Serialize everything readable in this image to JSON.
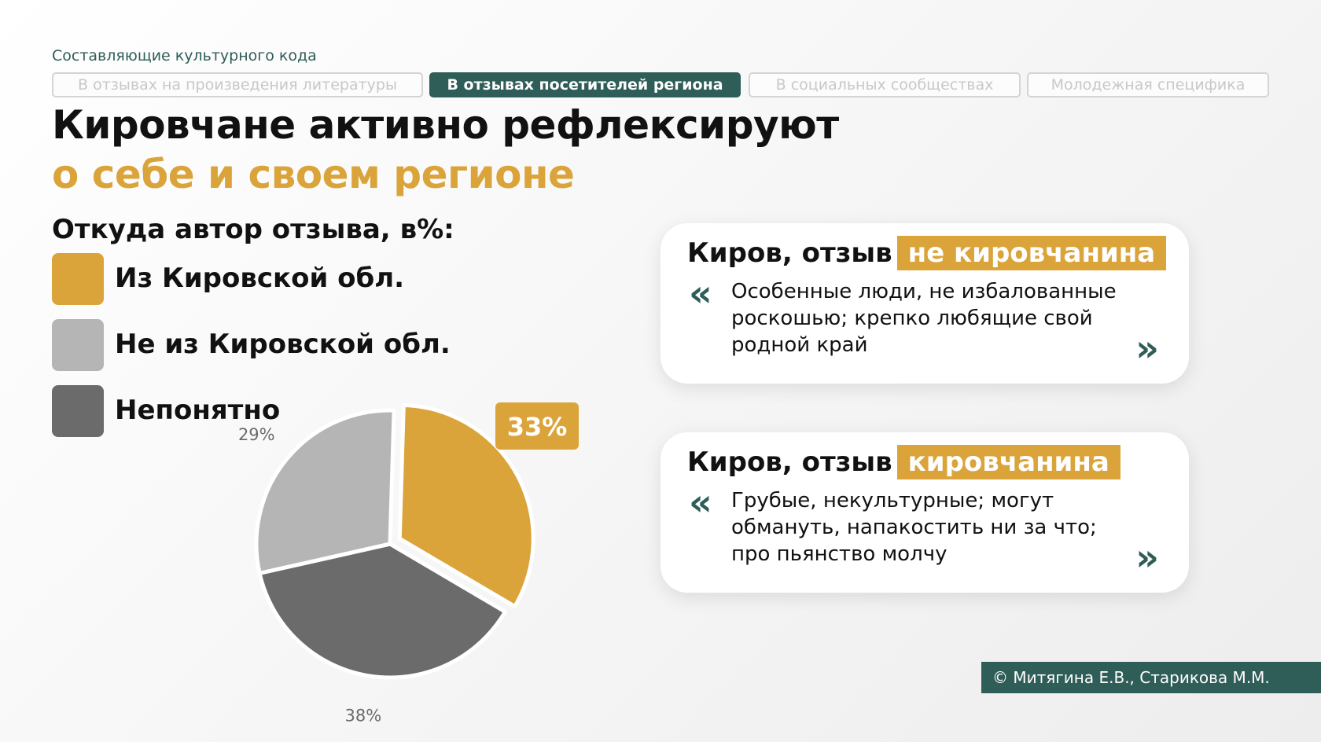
{
  "header": {
    "subtitle": "Составляющие культурного кода",
    "tabs": [
      {
        "label": "В отзывах на произведения литературы",
        "active": false
      },
      {
        "label": "В отзывах посетителей региона",
        "active": true
      },
      {
        "label": "В социальных сообществах",
        "active": false
      },
      {
        "label": "Молодежная специфика",
        "active": false
      }
    ],
    "title_line1": "Кировчане активно рефлексируют",
    "title_line2": "о себе и своем регионе"
  },
  "colors": {
    "accent": "#dba43a",
    "brand": "#2f5d58",
    "gray_light": "#b5b5b5",
    "gray_dark": "#6b6b6b"
  },
  "legend": {
    "title": "Откуда автор отзыва, в%:",
    "items": [
      {
        "label": "Из Кировской обл.",
        "color": "#dba43a"
      },
      {
        "label": "Не из Кировской обл.",
        "color": "#b5b5b5"
      },
      {
        "label": "Непонятно",
        "color": "#6b6b6b"
      }
    ]
  },
  "chart_data": {
    "type": "pie",
    "title": "Откуда автор отзыва, в%:",
    "categories": [
      "Из Кировской обл.",
      "Непонятно",
      "Не из Кировской обл."
    ],
    "values": [
      33,
      38,
      29
    ],
    "labels": [
      "33%",
      "38%",
      "29%"
    ],
    "colors": [
      "#dba43a",
      "#6b6b6b",
      "#b5b5b5"
    ],
    "exploded": "Из Кировской обл."
  },
  "cards": [
    {
      "head": "Киров, отзыв",
      "highlight": "не кировчанина",
      "text": "Особенные люди, не избалованные роскошью; крепко любящие свой родной край",
      "quote_open": "«",
      "quote_close": "»"
    },
    {
      "head": "Киров, отзыв",
      "highlight": "кировчанина",
      "text": "Грубые, некультурные; могут обмануть, напакостить ни за что; про пьянство молчу",
      "quote_open": "«",
      "quote_close": "»"
    }
  ],
  "footer": {
    "copyright": "© Митягина Е.В., Старикова М.М."
  }
}
